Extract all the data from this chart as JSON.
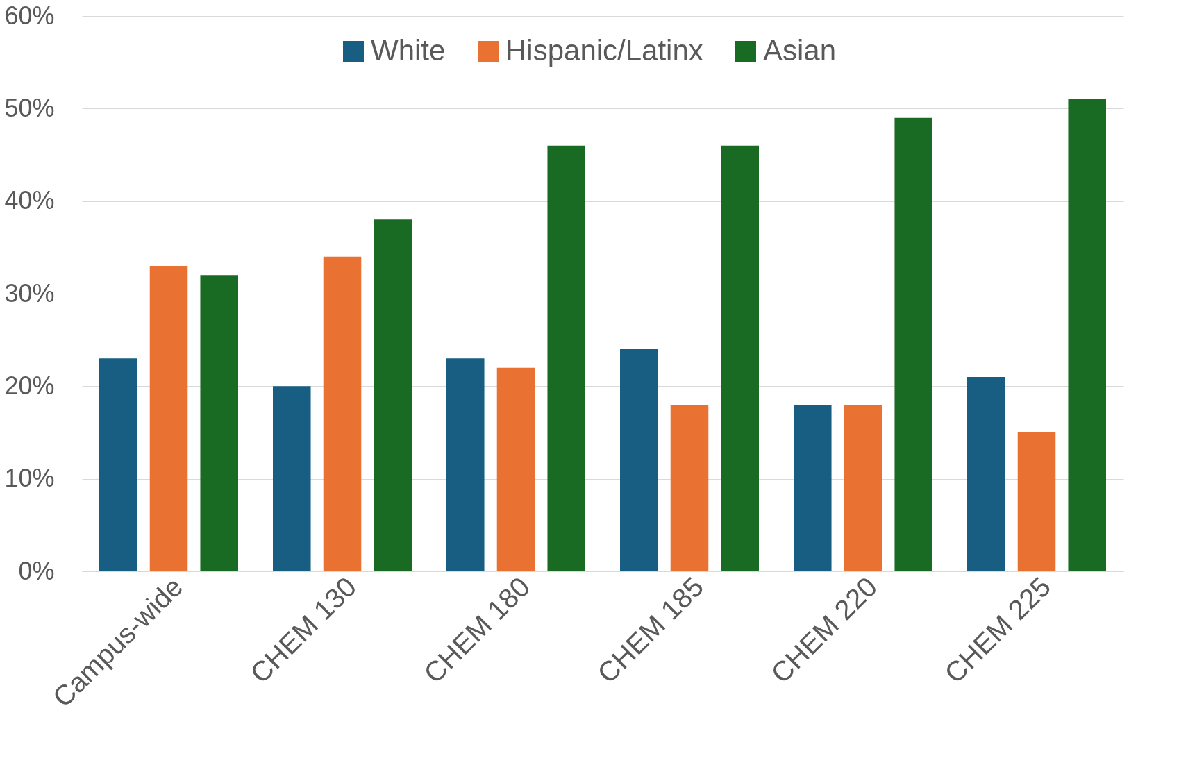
{
  "chart_data": {
    "type": "bar",
    "categories": [
      "Campus-wide",
      "CHEM 130",
      "CHEM 180",
      "CHEM 185",
      "CHEM 220",
      "CHEM 225"
    ],
    "series": [
      {
        "name": "White",
        "color": "#175e82",
        "values": [
          23,
          20,
          23,
          24,
          18,
          21
        ]
      },
      {
        "name": "Hispanic/Latinx",
        "color": "#e97132",
        "values": [
          33,
          34,
          22,
          18,
          18,
          15
        ]
      },
      {
        "name": "Asian",
        "color": "#196b24",
        "values": [
          32,
          38,
          46,
          46,
          49,
          51
        ]
      }
    ],
    "ylim": [
      0,
      60
    ],
    "yticks": [
      {
        "value": 0,
        "label": "0%"
      },
      {
        "value": 10,
        "label": "10%"
      },
      {
        "value": 20,
        "label": "20%"
      },
      {
        "value": 30,
        "label": "30%"
      },
      {
        "value": 40,
        "label": "40%"
      },
      {
        "value": 50,
        "label": "50%"
      },
      {
        "value": 60,
        "label": "60%"
      }
    ],
    "grid": "y",
    "legend": "top"
  }
}
